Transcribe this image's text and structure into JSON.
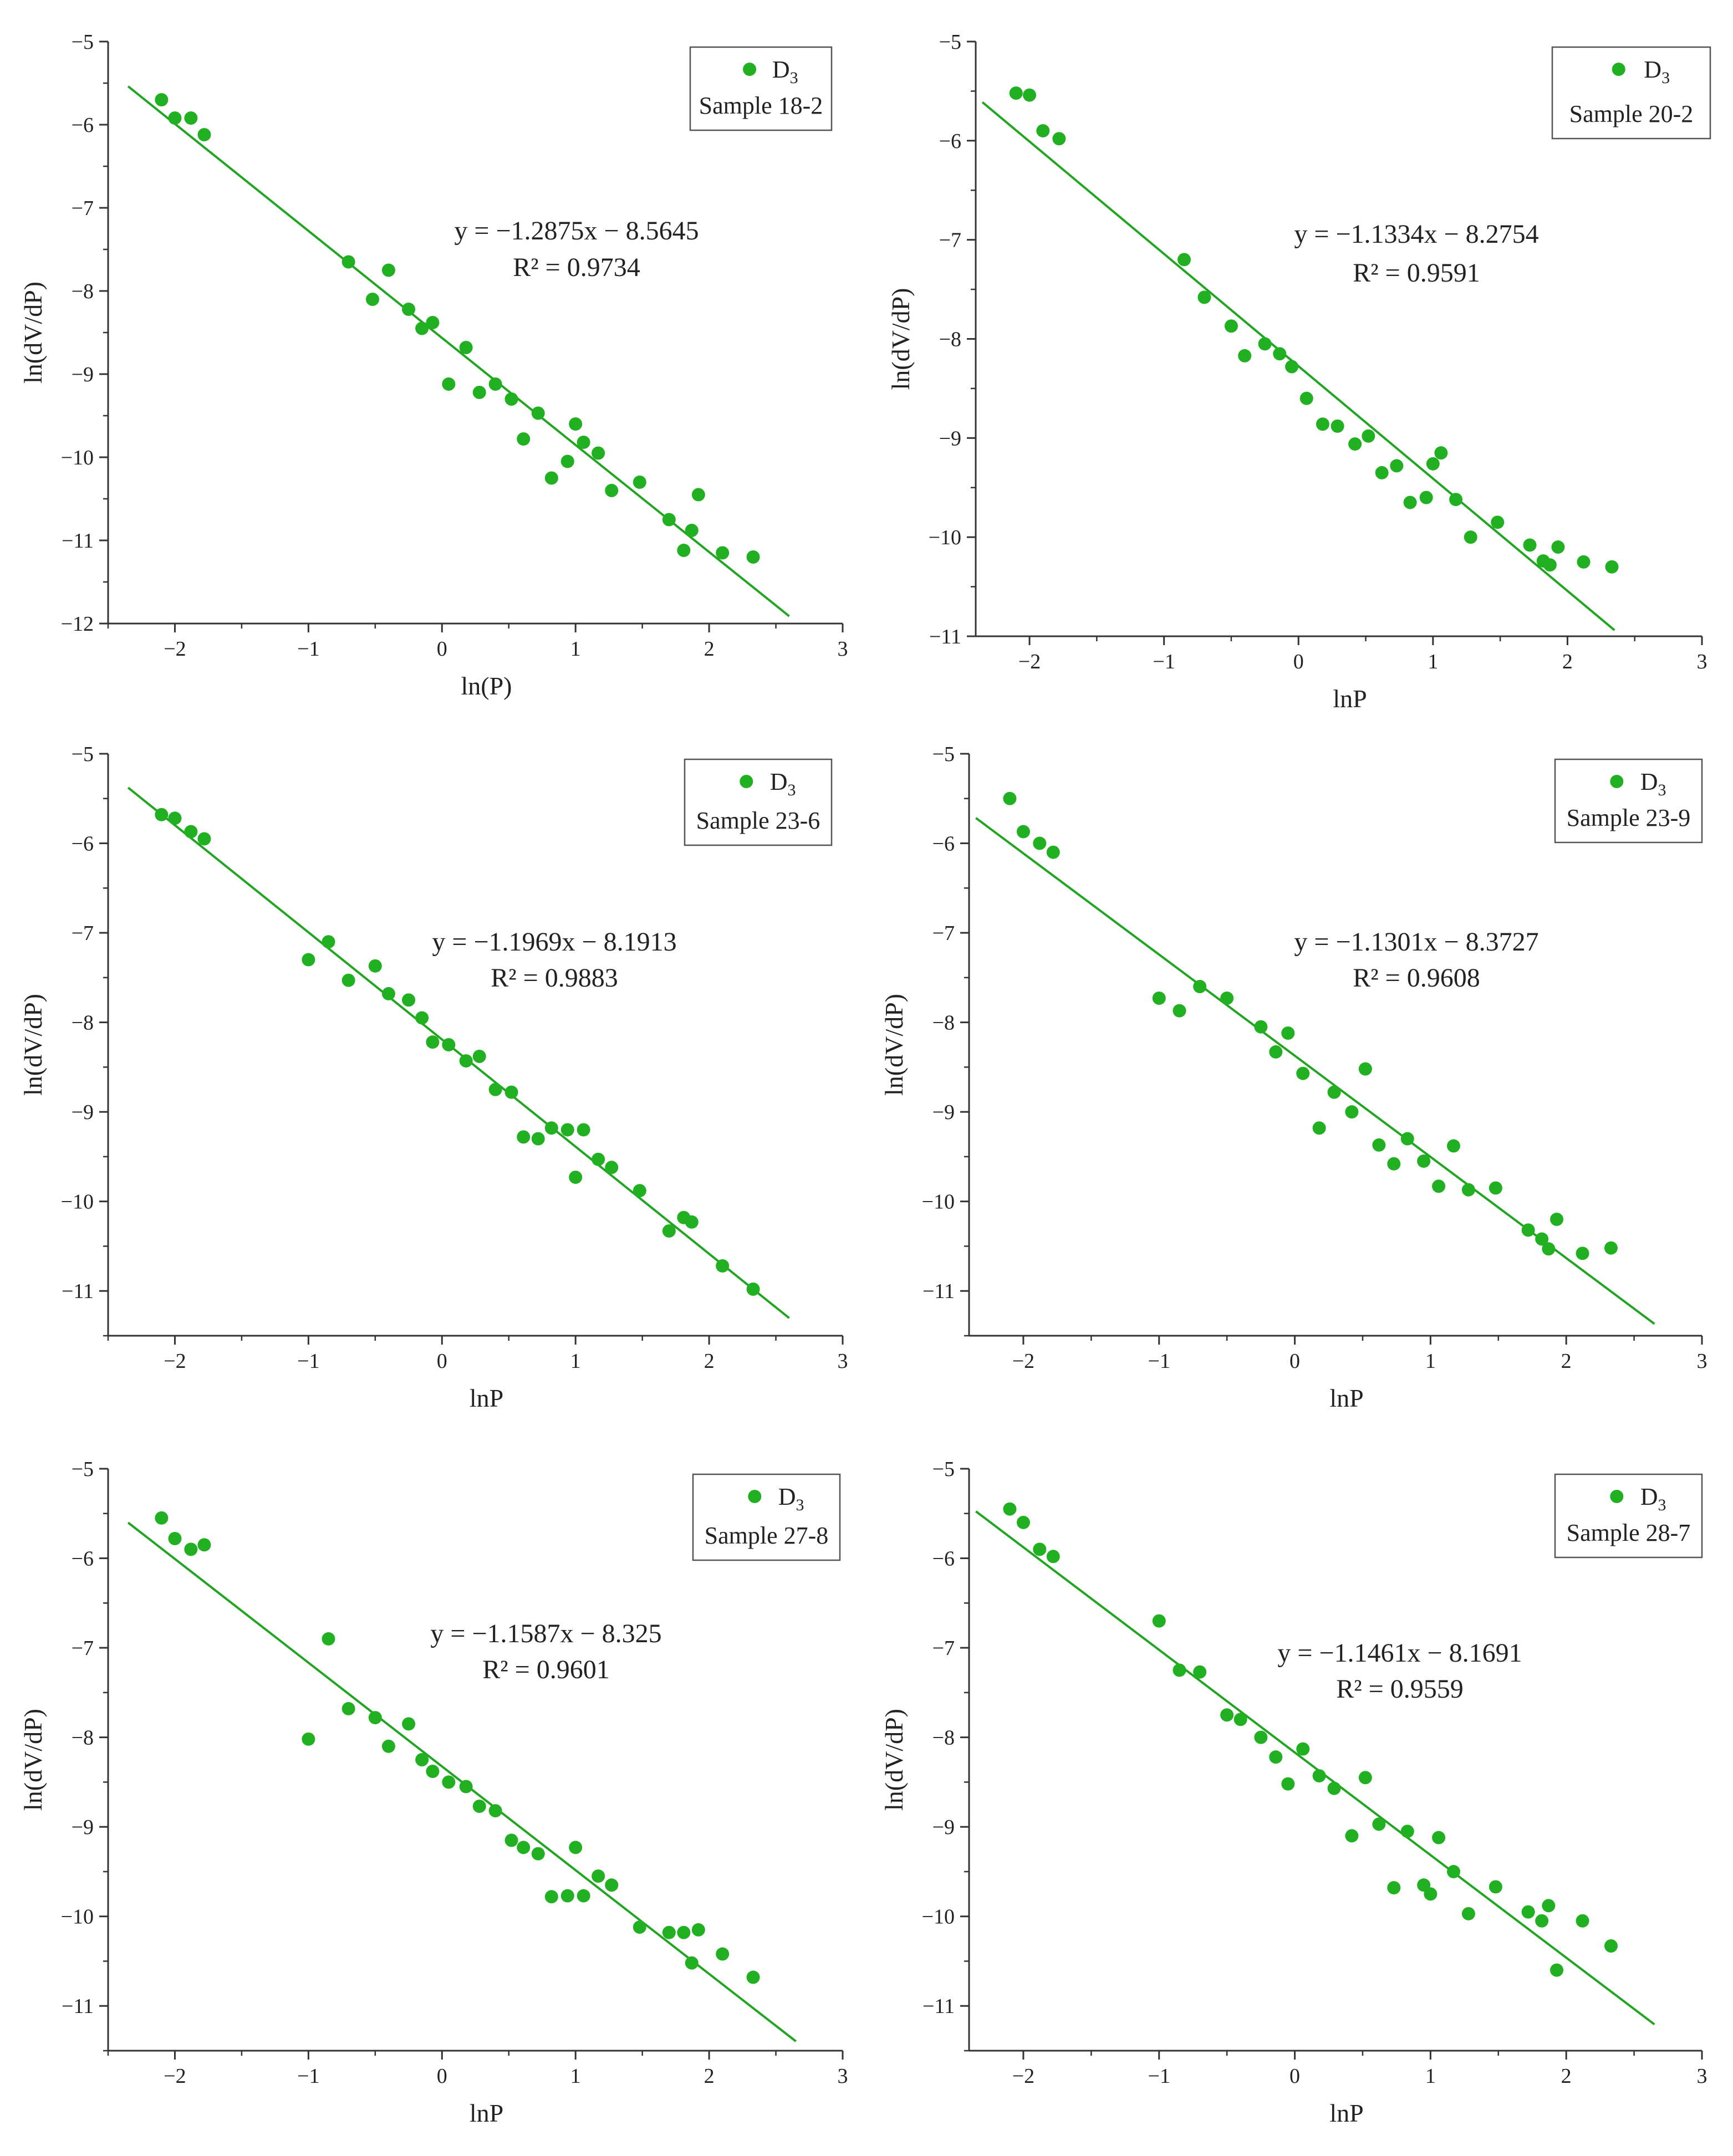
{
  "colors": {
    "series": "#21b021",
    "fit": "#1fa51f",
    "axis": "#333333",
    "legend_border": "#555555"
  },
  "chart_data": [
    {
      "type": "scatter",
      "legend_label": "D",
      "legend_subscript": "3",
      "sample_label": "Sample 18-2",
      "equation": "y = −1.2875x −  8.5645",
      "r2": "R² = 0.9734",
      "xlabel": "ln(P)",
      "ylabel": "ln(dV/dP)",
      "xlim": [
        -2.5,
        3
      ],
      "ylim": [
        -12,
        -5
      ],
      "xticks": [
        -2,
        -1,
        0,
        1,
        2,
        3
      ],
      "yticks": [
        -12,
        -11,
        -10,
        -9,
        -8,
        -7,
        -6,
        -5
      ],
      "fit": {
        "slope": -1.2875,
        "intercept": -8.5645,
        "x_range": [
          -2.35,
          2.6
        ]
      },
      "legend_position": "top-right",
      "x": [
        -2.1,
        -2.0,
        -1.88,
        -1.78,
        -0.7,
        -0.52,
        -0.4,
        -0.25,
        -0.15,
        -0.07,
        0.05,
        0.18,
        0.28,
        0.4,
        0.52,
        0.61,
        0.72,
        0.82,
        0.94,
        1.0,
        1.06,
        1.17,
        1.27,
        1.48,
        1.7,
        1.81,
        1.87,
        1.92,
        2.1,
        2.33
      ],
      "y": [
        -5.7,
        -5.92,
        -5.92,
        -6.12,
        -7.65,
        -8.1,
        -7.75,
        -8.22,
        -8.45,
        -8.38,
        -9.12,
        -8.68,
        -9.22,
        -9.12,
        -9.3,
        -9.78,
        -9.47,
        -10.25,
        -10.05,
        -9.6,
        -9.82,
        -9.95,
        -10.4,
        -10.3,
        -10.75,
        -11.12,
        -10.88,
        -10.45,
        -11.15,
        -11.2
      ]
    },
    {
      "type": "scatter",
      "legend_label": "D",
      "legend_subscript": "3",
      "sample_label": "Sample 20-2",
      "equation": "y = −1.1334x − 8.2754",
      "r2": "R² = 0.9591",
      "xlabel": "lnP",
      "ylabel": "ln(dV/dP)",
      "xlim": [
        -2.4,
        3
      ],
      "ylim": [
        -11,
        -5
      ],
      "xticks": [
        -2,
        -1,
        0,
        1,
        2,
        3
      ],
      "yticks": [
        -11,
        -10,
        -9,
        -8,
        -7,
        -6,
        -5
      ],
      "fit": {
        "slope": -1.1334,
        "intercept": -8.2754,
        "x_range": [
          -2.35,
          2.35
        ]
      },
      "legend_position": "top-right",
      "x": [
        -2.1,
        -2.0,
        -1.9,
        -1.78,
        -0.85,
        -0.7,
        -0.5,
        -0.4,
        -0.25,
        -0.14,
        -0.05,
        0.06,
        0.18,
        0.29,
        0.42,
        0.52,
        0.62,
        0.73,
        0.83,
        0.95,
        1.0,
        1.06,
        1.17,
        1.28,
        1.48,
        1.72,
        1.82,
        1.87,
        1.93,
        2.12,
        2.33
      ],
      "y": [
        -5.52,
        -5.54,
        -5.9,
        -5.98,
        -7.2,
        -7.58,
        -7.87,
        -8.17,
        -8.05,
        -8.15,
        -8.28,
        -8.6,
        -8.86,
        -8.88,
        -9.06,
        -8.98,
        -9.35,
        -9.28,
        -9.65,
        -9.6,
        -9.26,
        -9.15,
        -9.62,
        -10.0,
        -9.85,
        -10.08,
        -10.24,
        -10.28,
        -10.1,
        -10.25,
        -10.3
      ]
    },
    {
      "type": "scatter",
      "legend_label": "D",
      "legend_subscript": "3",
      "sample_label": "Sample 23-6",
      "equation": "y = −1.1969x −  8.1913",
      "r2": "R² = 0.9883",
      "xlabel": "lnP",
      "ylabel": "ln(dV/dP)",
      "xlim": [
        -2.5,
        3
      ],
      "ylim": [
        -11.5,
        -5
      ],
      "xticks": [
        -2,
        -1,
        0,
        1,
        2,
        3
      ],
      "yticks": [
        -11,
        -10,
        -9,
        -8,
        -7,
        -6,
        -5
      ],
      "fit": {
        "slope": -1.1969,
        "intercept": -8.1913,
        "x_range": [
          -2.35,
          2.6
        ]
      },
      "legend_position": "top-right",
      "x": [
        -2.1,
        -2.0,
        -1.88,
        -1.78,
        -1.0,
        -0.85,
        -0.7,
        -0.5,
        -0.4,
        -0.25,
        -0.15,
        -0.07,
        0.05,
        0.18,
        0.28,
        0.4,
        0.52,
        0.61,
        0.72,
        0.82,
        0.94,
        1.0,
        1.06,
        1.17,
        1.27,
        1.48,
        1.7,
        1.81,
        1.87,
        2.1,
        2.33
      ],
      "y": [
        -5.68,
        -5.72,
        -5.87,
        -5.95,
        -7.3,
        -7.1,
        -7.53,
        -7.37,
        -7.68,
        -7.75,
        -7.95,
        -8.22,
        -8.25,
        -8.43,
        -8.38,
        -8.75,
        -8.78,
        -9.28,
        -9.3,
        -9.18,
        -9.2,
        -9.73,
        -9.2,
        -9.53,
        -9.62,
        -9.88,
        -10.33,
        -10.18,
        -10.23,
        -10.72,
        -10.98
      ]
    },
    {
      "type": "scatter",
      "legend_label": "D",
      "legend_subscript": "3",
      "sample_label": "Sample 23-9",
      "equation": "y = −1.1301x  − 8.3727",
      "r2": "R² = 0.9608",
      "xlabel": "lnP",
      "ylabel": "ln(dV/dP)",
      "xlim": [
        -2.4,
        3
      ],
      "ylim": [
        -11.5,
        -5
      ],
      "xticks": [
        -2,
        -1,
        0,
        1,
        2,
        3
      ],
      "yticks": [
        -11,
        -10,
        -9,
        -8,
        -7,
        -6,
        -5
      ],
      "fit": {
        "slope": -1.1301,
        "intercept": -8.3727,
        "x_range": [
          -2.35,
          2.65
        ]
      },
      "legend_position": "top-right",
      "x": [
        -2.1,
        -2.0,
        -1.88,
        -1.78,
        -1.0,
        -0.85,
        -0.7,
        -0.5,
        -0.25,
        -0.14,
        -0.05,
        0.06,
        0.18,
        0.29,
        0.42,
        0.52,
        0.62,
        0.73,
        0.83,
        0.95,
        1.06,
        1.17,
        1.28,
        1.48,
        1.72,
        1.82,
        1.87,
        1.93,
        2.12,
        2.33
      ],
      "y": [
        -5.5,
        -5.87,
        -6.0,
        -6.1,
        -7.73,
        -7.87,
        -7.6,
        -7.73,
        -8.05,
        -8.33,
        -8.12,
        -8.57,
        -9.18,
        -8.78,
        -9.0,
        -8.52,
        -9.37,
        -9.58,
        -9.3,
        -9.55,
        -9.83,
        -9.38,
        -9.87,
        -9.85,
        -10.32,
        -10.42,
        -10.53,
        -10.2,
        -10.58,
        -10.52
      ]
    },
    {
      "type": "scatter",
      "legend_label": "D",
      "legend_subscript": "3",
      "sample_label": "Sample 27-8",
      "equation": "y = −1.1587x − 8.325",
      "r2": "R² = 0.9601",
      "xlabel": "lnP",
      "ylabel": "ln(dV/dP)",
      "xlim": [
        -2.5,
        3
      ],
      "ylim": [
        -11.5,
        -5
      ],
      "xticks": [
        -2,
        -1,
        0,
        1,
        2,
        3
      ],
      "yticks": [
        -11,
        -10,
        -9,
        -8,
        -7,
        -6,
        -5
      ],
      "fit": {
        "slope": -1.1587,
        "intercept": -8.325,
        "x_range": [
          -2.35,
          2.65
        ]
      },
      "legend_position": "top-right",
      "x": [
        -2.1,
        -2.0,
        -1.88,
        -1.78,
        -1.0,
        -0.85,
        -0.7,
        -0.5,
        -0.4,
        -0.25,
        -0.15,
        -0.07,
        0.05,
        0.18,
        0.28,
        0.4,
        0.52,
        0.61,
        0.72,
        0.82,
        0.94,
        1.0,
        1.06,
        1.17,
        1.27,
        1.48,
        1.7,
        1.81,
        1.87,
        1.92,
        2.1,
        2.33
      ],
      "y": [
        -5.55,
        -5.78,
        -5.9,
        -5.85,
        -8.02,
        -6.9,
        -7.68,
        -7.78,
        -8.1,
        -7.85,
        -8.25,
        -8.38,
        -8.5,
        -8.55,
        -8.77,
        -8.82,
        -9.15,
        -9.23,
        -9.3,
        -9.78,
        -9.77,
        -9.23,
        -9.77,
        -9.55,
        -9.65,
        -10.12,
        -10.18,
        -10.18,
        -10.52,
        -10.15,
        -10.42,
        -10.68
      ]
    },
    {
      "type": "scatter",
      "legend_label": "D",
      "legend_subscript": "3",
      "sample_label": "Sample 28-7",
      "equation": "y = −1.1461x  − 8.1691",
      "r2": "R² = 0.9559",
      "xlabel": "lnP",
      "ylabel": "ln(dV/dP)",
      "xlim": [
        -2.4,
        3
      ],
      "ylim": [
        -11.5,
        -5
      ],
      "xticks": [
        -2,
        -1,
        0,
        1,
        2,
        3
      ],
      "yticks": [
        -11,
        -10,
        -9,
        -8,
        -7,
        -6,
        -5
      ],
      "fit": {
        "slope": -1.1461,
        "intercept": -8.1691,
        "x_range": [
          -2.35,
          2.65
        ]
      },
      "legend_position": "top-right",
      "x": [
        -2.1,
        -2.0,
        -1.88,
        -1.78,
        -1.0,
        -0.85,
        -0.7,
        -0.5,
        -0.4,
        -0.25,
        -0.14,
        -0.05,
        0.06,
        0.18,
        0.29,
        0.42,
        0.52,
        0.62,
        0.73,
        0.83,
        0.95,
        1.0,
        1.06,
        1.17,
        1.28,
        1.48,
        1.72,
        1.82,
        1.87,
        1.93,
        2.12,
        2.33
      ],
      "y": [
        -5.45,
        -5.6,
        -5.9,
        -5.98,
        -6.7,
        -7.25,
        -7.27,
        -7.75,
        -7.8,
        -8.0,
        -8.22,
        -8.52,
        -8.13,
        -8.43,
        -8.57,
        -9.1,
        -8.45,
        -8.97,
        -9.68,
        -9.05,
        -9.65,
        -9.75,
        -9.12,
        -9.5,
        -9.97,
        -9.67,
        -9.95,
        -10.05,
        -9.88,
        -10.6,
        -10.05,
        -10.33
      ]
    }
  ]
}
